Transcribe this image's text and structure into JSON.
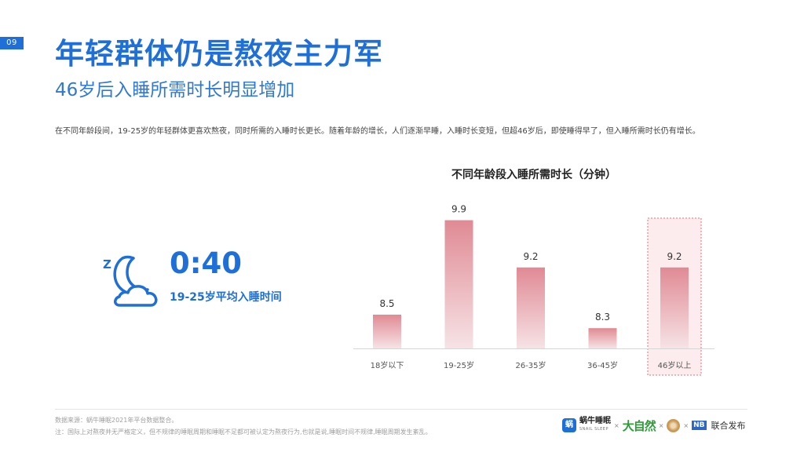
{
  "page_number": "09",
  "title": "年轻群体仍是熬夜主力军",
  "subtitle": "46岁后入睡所需时长明显增加",
  "description": "在不同年龄段间，19-25岁的年轻群体更喜欢熬夜，同时所需的入睡时长更长。随着年龄的增长，人们逐渐早睡，入睡时长变短，但超46岁后，即使睡得早了，但入睡所需时长仍有增长。",
  "stat": {
    "icon": "moon-cloud-icon",
    "icon_letter": "Z",
    "value": "0:40",
    "label": "19-25岁平均入睡时间"
  },
  "colors": {
    "primary": "#1f6fd8",
    "bar_top": "#e08a94",
    "bar_bottom": "#f6e3e6",
    "highlight_border": "#e2707d",
    "highlight_fill": "#fdecee"
  },
  "chart_data": {
    "type": "bar",
    "title": "不同年龄段入睡所需时长（分钟）",
    "categories": [
      "18岁以下",
      "19-25岁",
      "26-35岁",
      "36-45岁",
      "46岁以上"
    ],
    "values": [
      8.5,
      9.9,
      9.2,
      8.3,
      9.2
    ],
    "value_labels": [
      "8.5",
      "9.9",
      "9.2",
      "8.3",
      "9.2"
    ],
    "highlight_index": 4,
    "ylim": [
      8,
      10
    ]
  },
  "footer": {
    "source": "数据来源：蜗牛睡眠2021年平台数据整合。",
    "note": "注：国际上对熬夜并无严格定义，但不规律的睡眠周期和睡眠不足都可被认定为熬夜行为,也就是说,睡眠时间不规律,睡眠周期发生紊乱。"
  },
  "brands": {
    "snail_logo": "蜗",
    "snail": "蜗牛睡眠",
    "snail_en": "SNAIL SLEEP",
    "sep": "×",
    "dzr": "大自然",
    "nb": "NB",
    "joint": "联合发布"
  }
}
